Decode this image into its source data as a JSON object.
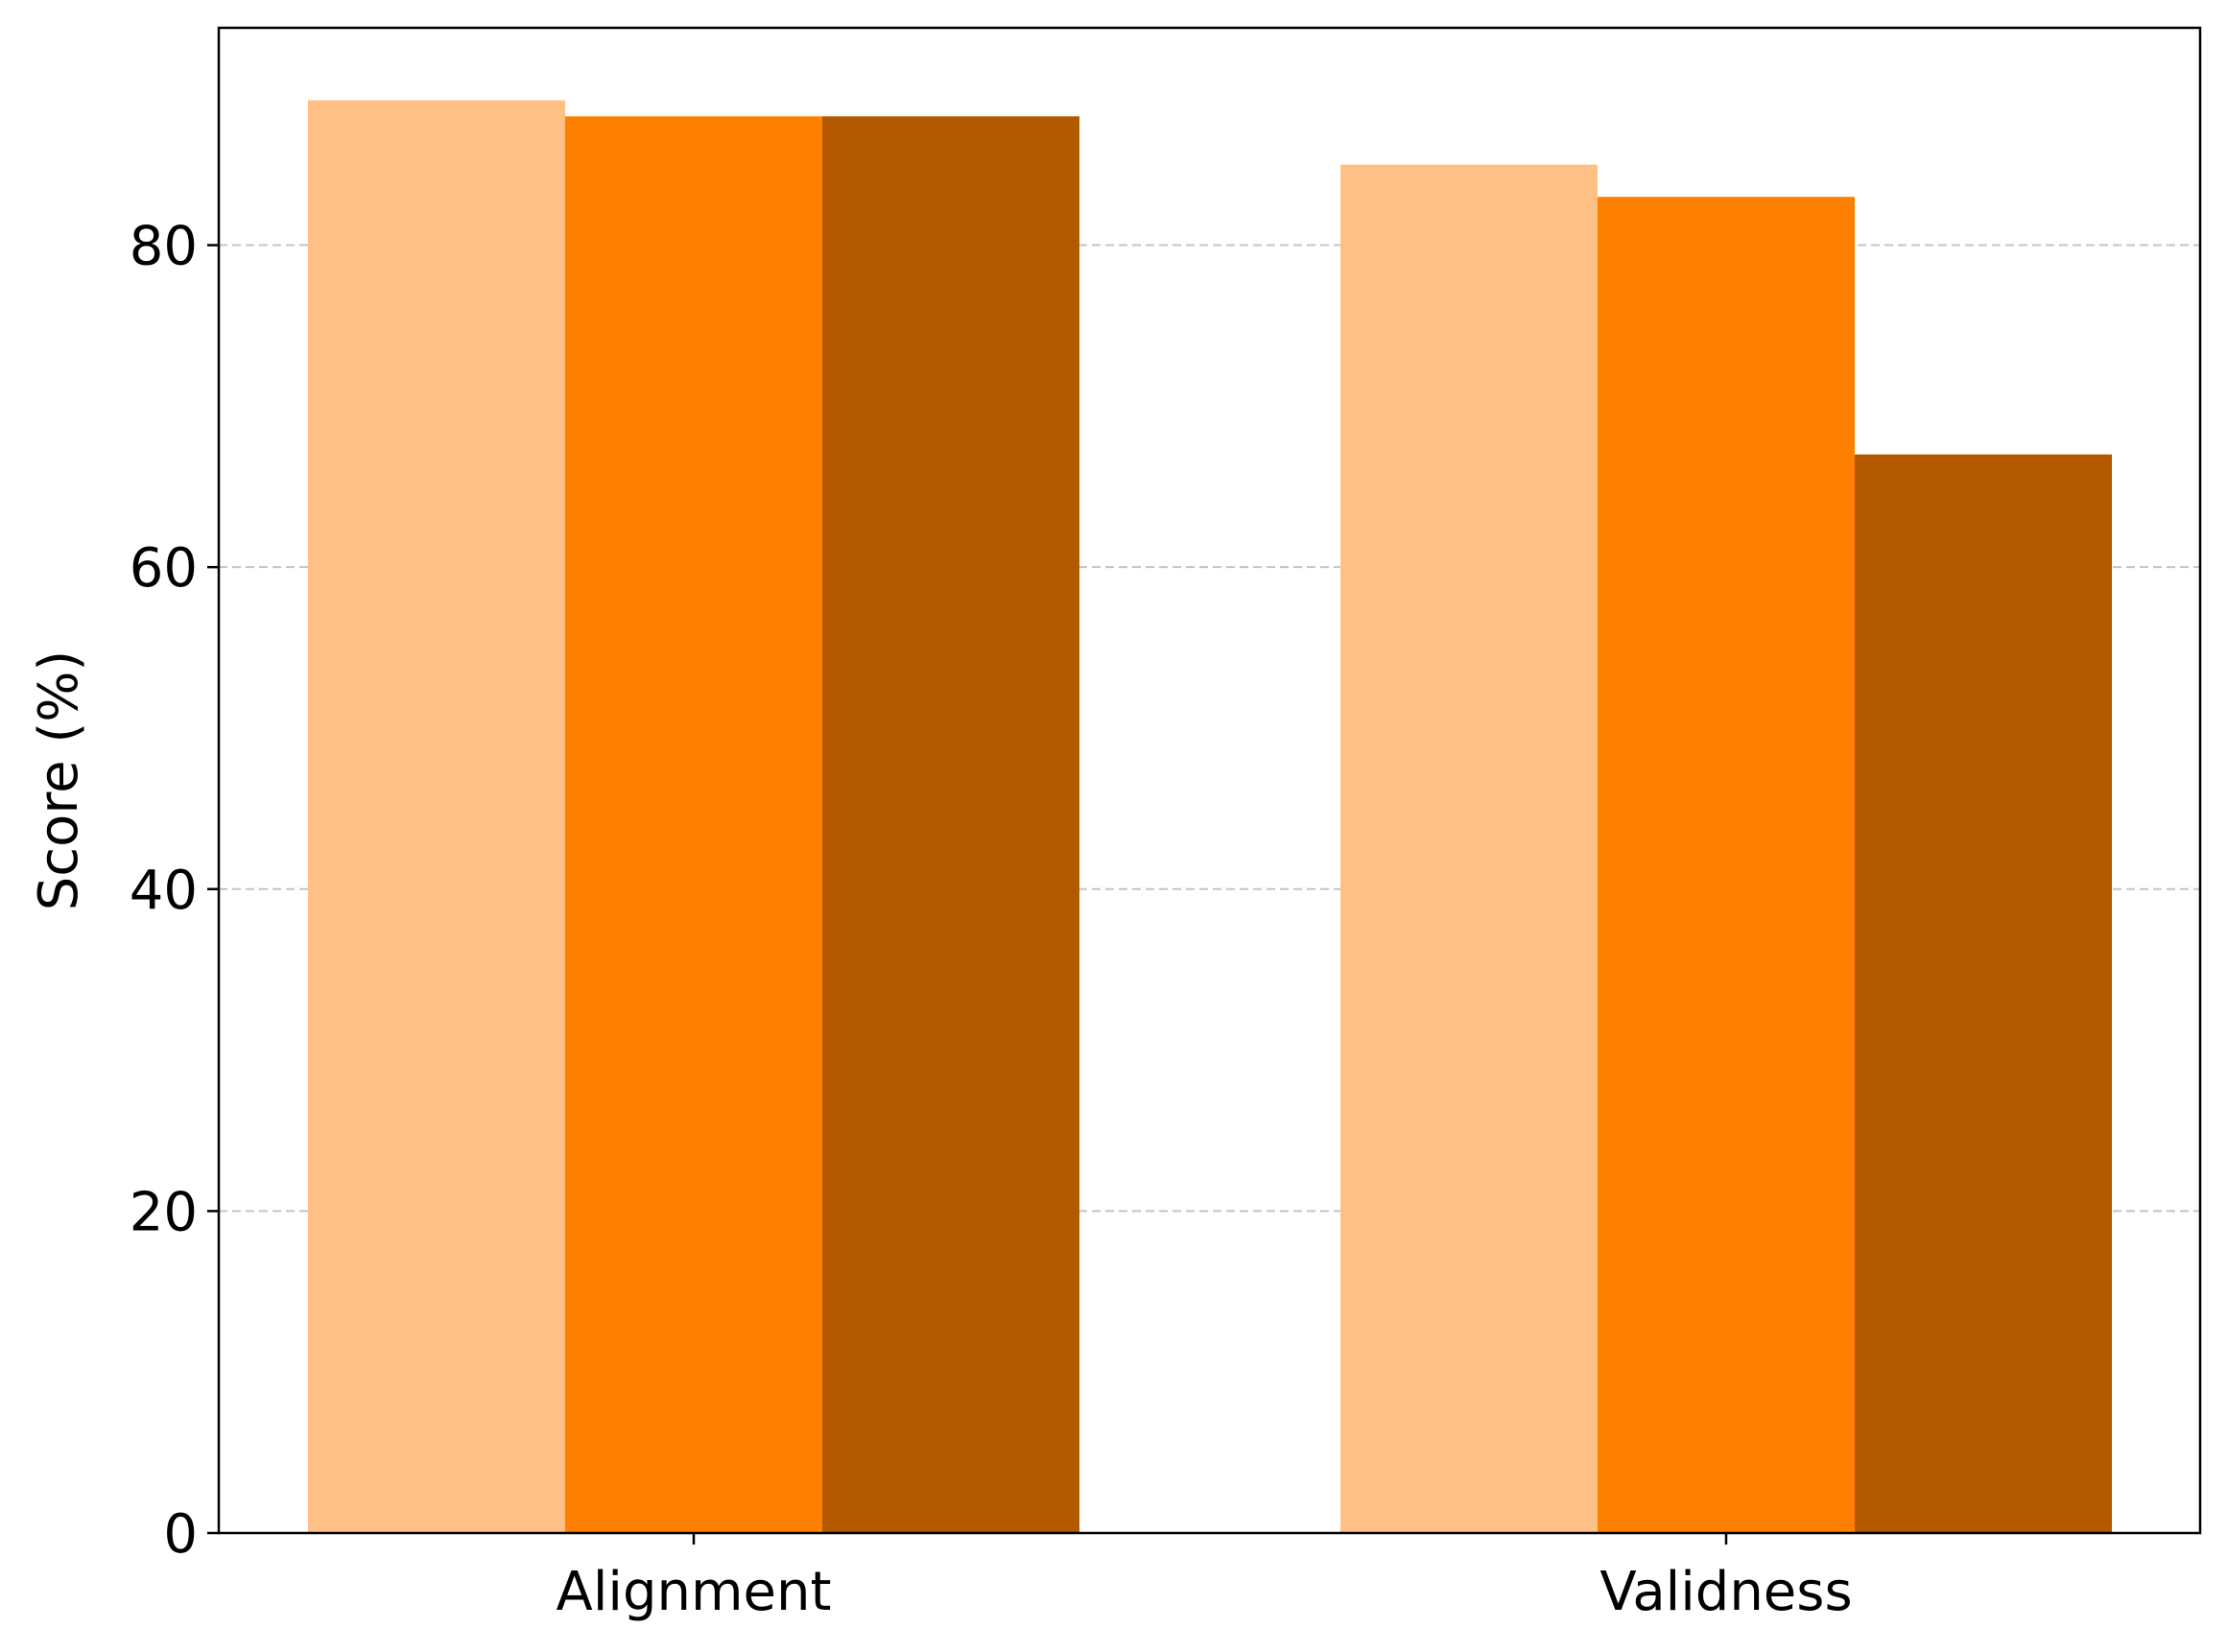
{
  "chart_data": {
    "type": "bar",
    "categories": [
      "Alignment",
      "Validness"
    ],
    "series": [
      {
        "values": [
          89,
          85
        ],
        "color": "#FFC085"
      },
      {
        "values": [
          88,
          83
        ],
        "color": "#FF8000"
      },
      {
        "values": [
          88,
          67
        ],
        "color": "#B35900"
      }
    ],
    "ylabel": "Score (%)",
    "ylim": [
      0,
      93.5
    ],
    "yticks": [
      0,
      20,
      40,
      60,
      80
    ],
    "grid": "y-dashed",
    "legend": "none"
  }
}
